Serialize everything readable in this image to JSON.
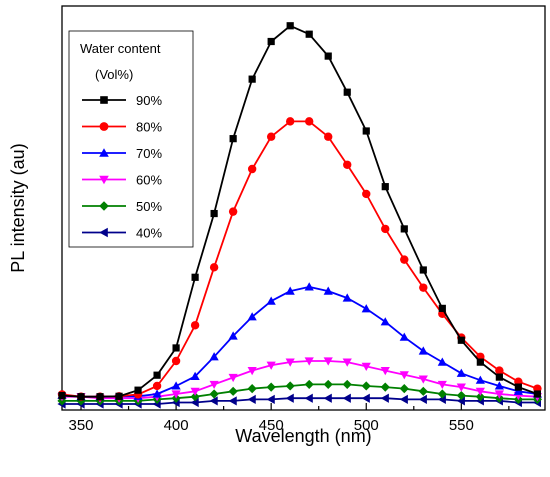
{
  "chart_data": {
    "type": "line",
    "xlabel": "Wavelength (nm)",
    "ylabel": "PL intensity (au)",
    "xlim": [
      340,
      594
    ],
    "ylim": [
      0,
      100
    ],
    "xticks": [
      350,
      400,
      450,
      500,
      550
    ],
    "y_tick_labels_shown": false,
    "legend": {
      "title_line1": "Water content",
      "title_line2": "(Vol%)",
      "position": "top-left"
    },
    "x": [
      340,
      350,
      360,
      370,
      380,
      390,
      400,
      410,
      420,
      430,
      440,
      450,
      460,
      470,
      480,
      490,
      500,
      510,
      520,
      530,
      540,
      550,
      560,
      570,
      580,
      590
    ],
    "series": [
      {
        "name": "90%",
        "color": "#000000",
        "marker": "square",
        "values": [
          2.2,
          1.9,
          1.9,
          2.0,
          3.6,
          7.5,
          14.6,
          33.0,
          49.6,
          69.1,
          84.6,
          94.4,
          98.5,
          96.3,
          90.6,
          81.2,
          71.1,
          56.6,
          45.6,
          34.9,
          24.9,
          16.6,
          10.9,
          7.0,
          4.4,
          2.6
        ]
      },
      {
        "name": "80%",
        "color": "#ff0000",
        "marker": "circle",
        "values": [
          2.5,
          1.9,
          1.9,
          2.0,
          2.5,
          4.7,
          11.2,
          20.5,
          35.6,
          50.1,
          61.2,
          69.6,
          73.6,
          73.6,
          69.6,
          62.3,
          54.7,
          45.6,
          37.6,
          30.3,
          23.5,
          17.3,
          12.3,
          8.7,
          5.8,
          4.0
        ]
      },
      {
        "name": "70%",
        "color": "#0000ff",
        "marker": "triangle-up",
        "values": [
          2.3,
          1.9,
          1.9,
          2.0,
          2.0,
          2.6,
          4.7,
          7.2,
          12.3,
          17.7,
          22.7,
          26.8,
          29.4,
          30.5,
          29.4,
          27.6,
          24.8,
          21.4,
          17.4,
          13.8,
          10.9,
          8.0,
          6.2,
          4.7,
          3.3,
          2.6
        ]
      },
      {
        "name": "60%",
        "color": "#ff00ff",
        "marker": "triangle-down",
        "values": [
          1.9,
          1.9,
          1.5,
          1.5,
          1.5,
          1.9,
          2.6,
          3.3,
          5.1,
          6.9,
          8.7,
          10.1,
          10.9,
          11.2,
          11.2,
          10.9,
          9.8,
          8.7,
          7.6,
          6.5,
          5.1,
          4.4,
          3.3,
          2.6,
          2.2,
          1.9
        ]
      },
      {
        "name": "50%",
        "color": "#008000",
        "marker": "diamond",
        "values": [
          0.8,
          0.8,
          0.8,
          0.8,
          0.8,
          1.2,
          1.5,
          1.9,
          2.6,
          3.3,
          4.0,
          4.4,
          4.7,
          5.1,
          5.1,
          5.1,
          4.7,
          4.4,
          4.0,
          3.3,
          2.6,
          2.2,
          1.9,
          1.5,
          1.2,
          1.2
        ]
      },
      {
        "name": "40%",
        "color": "#00008b",
        "marker": "triangle-left",
        "values": [
          0.0,
          0.0,
          0.0,
          0.0,
          0.0,
          0.0,
          0.4,
          0.4,
          0.8,
          0.8,
          1.2,
          1.2,
          1.5,
          1.5,
          1.5,
          1.5,
          1.5,
          1.5,
          1.2,
          1.2,
          1.2,
          0.8,
          0.8,
          0.8,
          0.4,
          0.4
        ]
      }
    ]
  }
}
